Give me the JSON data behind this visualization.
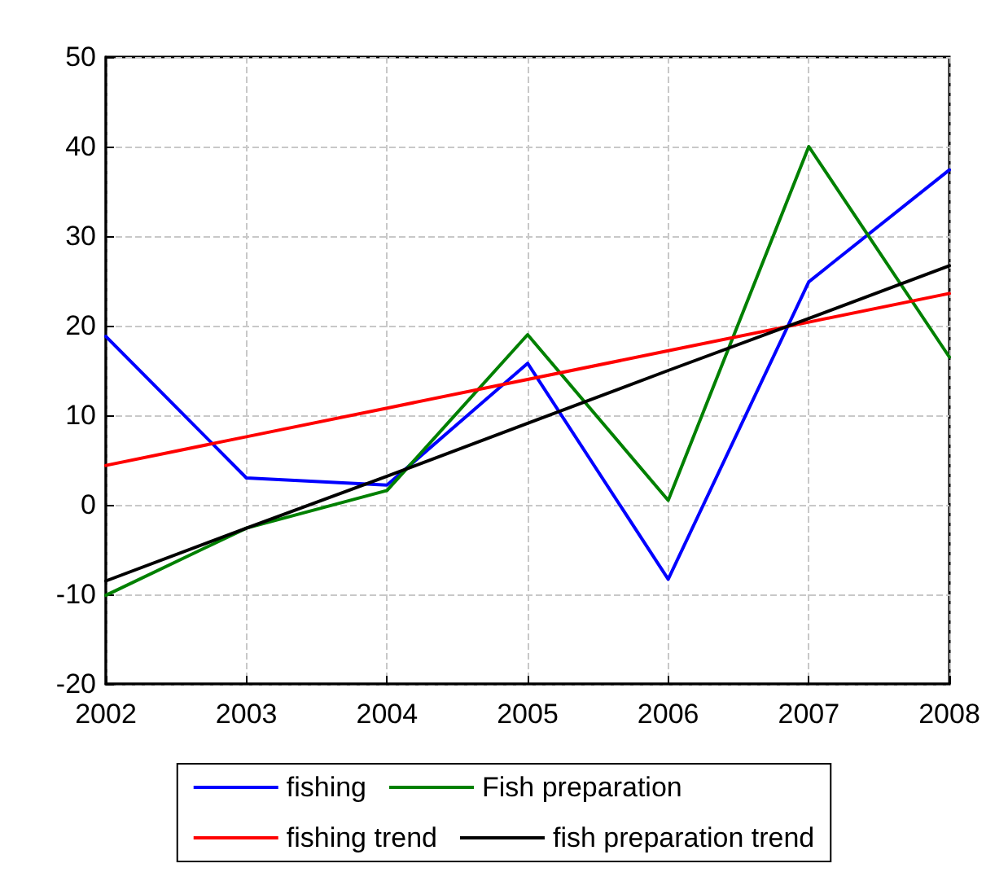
{
  "chart_data": {
    "type": "line",
    "x": [
      2002,
      2003,
      2004,
      2005,
      2006,
      2007,
      2008
    ],
    "xlim": [
      2002,
      2008
    ],
    "xticks": [
      2002,
      2003,
      2004,
      2005,
      2006,
      2007,
      2008
    ],
    "ylim": [
      -20,
      50
    ],
    "yticks": [
      -20,
      -10,
      0,
      10,
      20,
      30,
      40,
      50
    ],
    "grid": true,
    "legend": "bottom",
    "marker": "none",
    "line_style": "solid",
    "series": [
      {
        "name": "fishing",
        "color": "#0000ff",
        "values": [
          18.8,
          3.0,
          2.2,
          15.8,
          -8.3,
          24.9,
          37.4
        ]
      },
      {
        "name": "Fish preparation",
        "color": "#008000",
        "values": [
          -10.1,
          -2.6,
          1.6,
          19.0,
          0.5,
          40.0,
          16.5
        ]
      },
      {
        "name": "fishing trend",
        "color": "#ff0000",
        "values": [
          4.4,
          7.6,
          10.8,
          14.0,
          17.2,
          20.4,
          23.6
        ]
      },
      {
        "name": "fish preparation trend",
        "color": "#000000",
        "values": [
          -8.5,
          -2.6,
          3.2,
          9.1,
          15.0,
          20.8,
          26.7
        ]
      }
    ]
  }
}
